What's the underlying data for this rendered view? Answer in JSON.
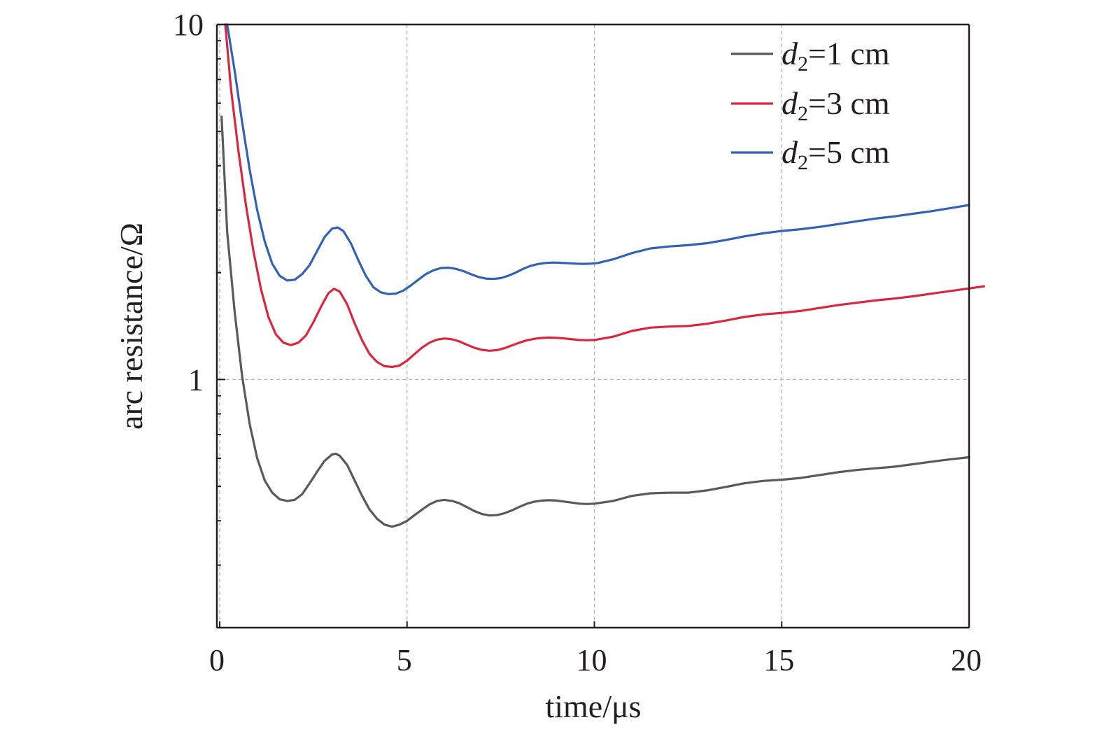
{
  "chart_data": {
    "type": "line",
    "xlabel": "time/μs",
    "ylabel": "arc resistance/Ω",
    "xlim": [
      0,
      20
    ],
    "ylim": [
      0.2,
      10
    ],
    "yscale": "log",
    "x_ticks": [
      0,
      5,
      10,
      15,
      20
    ],
    "x_tick_labels": [
      "0",
      "5",
      "10",
      "15",
      "20"
    ],
    "y_ticks": [
      1,
      10
    ],
    "y_tick_labels": [
      "1",
      "10"
    ],
    "grid": true,
    "legend_position": "top-right",
    "series": [
      {
        "name_var": "d",
        "name_sub": "2",
        "name_rest": "=1 cm",
        "color": "#5a5a5a",
        "points": [
          [
            0.05,
            5.5
          ],
          [
            0.2,
            2.6
          ],
          [
            0.4,
            1.55
          ],
          [
            0.6,
            1.02
          ],
          [
            0.8,
            0.75
          ],
          [
            1.0,
            0.6
          ],
          [
            1.2,
            0.52
          ],
          [
            1.4,
            0.48
          ],
          [
            1.6,
            0.46
          ],
          [
            1.8,
            0.455
          ],
          [
            2.0,
            0.458
          ],
          [
            2.2,
            0.475
          ],
          [
            2.4,
            0.51
          ],
          [
            2.6,
            0.55
          ],
          [
            2.8,
            0.59
          ],
          [
            3.0,
            0.615
          ],
          [
            3.1,
            0.618
          ],
          [
            3.2,
            0.61
          ],
          [
            3.4,
            0.575
          ],
          [
            3.6,
            0.52
          ],
          [
            3.8,
            0.47
          ],
          [
            4.0,
            0.43
          ],
          [
            4.2,
            0.405
          ],
          [
            4.4,
            0.39
          ],
          [
            4.6,
            0.385
          ],
          [
            4.8,
            0.39
          ],
          [
            5.0,
            0.4
          ],
          [
            5.2,
            0.415
          ],
          [
            5.4,
            0.43
          ],
          [
            5.6,
            0.445
          ],
          [
            5.8,
            0.455
          ],
          [
            6.0,
            0.458
          ],
          [
            6.2,
            0.455
          ],
          [
            6.4,
            0.448
          ],
          [
            6.6,
            0.437
          ],
          [
            6.8,
            0.426
          ],
          [
            7.0,
            0.418
          ],
          [
            7.2,
            0.414
          ],
          [
            7.4,
            0.415
          ],
          [
            7.6,
            0.42
          ],
          [
            7.8,
            0.428
          ],
          [
            8.0,
            0.438
          ],
          [
            8.2,
            0.447
          ],
          [
            8.4,
            0.453
          ],
          [
            8.6,
            0.456
          ],
          [
            8.8,
            0.457
          ],
          [
            9.0,
            0.456
          ],
          [
            9.2,
            0.453
          ],
          [
            9.4,
            0.45
          ],
          [
            9.6,
            0.447
          ],
          [
            9.8,
            0.446
          ],
          [
            10.0,
            0.447
          ],
          [
            10.5,
            0.455
          ],
          [
            11.0,
            0.47
          ],
          [
            11.5,
            0.478
          ],
          [
            12.0,
            0.48
          ],
          [
            12.5,
            0.48
          ],
          [
            13.0,
            0.487
          ],
          [
            13.5,
            0.498
          ],
          [
            14.0,
            0.51
          ],
          [
            14.5,
            0.518
          ],
          [
            15.0,
            0.522
          ],
          [
            15.5,
            0.528
          ],
          [
            16.0,
            0.538
          ],
          [
            16.5,
            0.548
          ],
          [
            17.0,
            0.556
          ],
          [
            17.5,
            0.562
          ],
          [
            18.0,
            0.568
          ],
          [
            18.5,
            0.577
          ],
          [
            19.0,
            0.587
          ],
          [
            19.5,
            0.596
          ],
          [
            20.0,
            0.604
          ]
        ]
      },
      {
        "name_var": "d",
        "name_sub": "2",
        "name_rest": "=3 cm",
        "color": "#d9283e",
        "points": [
          [
            0.15,
            10.0
          ],
          [
            0.3,
            6.6
          ],
          [
            0.5,
            4.4
          ],
          [
            0.7,
            3.1
          ],
          [
            0.9,
            2.3
          ],
          [
            1.1,
            1.8
          ],
          [
            1.3,
            1.5
          ],
          [
            1.5,
            1.34
          ],
          [
            1.7,
            1.27
          ],
          [
            1.9,
            1.25
          ],
          [
            2.1,
            1.27
          ],
          [
            2.3,
            1.33
          ],
          [
            2.5,
            1.45
          ],
          [
            2.7,
            1.6
          ],
          [
            2.9,
            1.75
          ],
          [
            3.05,
            1.8
          ],
          [
            3.2,
            1.77
          ],
          [
            3.4,
            1.63
          ],
          [
            3.6,
            1.44
          ],
          [
            3.8,
            1.29
          ],
          [
            4.0,
            1.18
          ],
          [
            4.2,
            1.12
          ],
          [
            4.4,
            1.09
          ],
          [
            4.6,
            1.085
          ],
          [
            4.8,
            1.095
          ],
          [
            5.0,
            1.13
          ],
          [
            5.2,
            1.18
          ],
          [
            5.4,
            1.23
          ],
          [
            5.6,
            1.27
          ],
          [
            5.8,
            1.295
          ],
          [
            6.0,
            1.305
          ],
          [
            6.2,
            1.298
          ],
          [
            6.4,
            1.28
          ],
          [
            6.6,
            1.253
          ],
          [
            6.8,
            1.228
          ],
          [
            7.0,
            1.212
          ],
          [
            7.2,
            1.205
          ],
          [
            7.4,
            1.21
          ],
          [
            7.6,
            1.225
          ],
          [
            7.8,
            1.248
          ],
          [
            8.0,
            1.27
          ],
          [
            8.2,
            1.29
          ],
          [
            8.4,
            1.302
          ],
          [
            8.6,
            1.31
          ],
          [
            8.8,
            1.312
          ],
          [
            9.0,
            1.31
          ],
          [
            9.2,
            1.305
          ],
          [
            9.4,
            1.298
          ],
          [
            9.6,
            1.292
          ],
          [
            9.8,
            1.29
          ],
          [
            10.0,
            1.292
          ],
          [
            10.5,
            1.32
          ],
          [
            11.0,
            1.37
          ],
          [
            11.5,
            1.4
          ],
          [
            12.0,
            1.41
          ],
          [
            12.5,
            1.415
          ],
          [
            13.0,
            1.435
          ],
          [
            13.5,
            1.465
          ],
          [
            14.0,
            1.5
          ],
          [
            14.5,
            1.525
          ],
          [
            15.0,
            1.54
          ],
          [
            15.5,
            1.56
          ],
          [
            16.0,
            1.59
          ],
          [
            16.5,
            1.62
          ],
          [
            17.0,
            1.645
          ],
          [
            17.5,
            1.67
          ],
          [
            18.0,
            1.69
          ],
          [
            18.5,
            1.715
          ],
          [
            19.0,
            1.745
          ],
          [
            19.5,
            1.775
          ],
          [
            20.0,
            1.805
          ],
          [
            20.4,
            1.83
          ]
        ]
      },
      {
        "name_var": "d",
        "name_sub": "2",
        "name_rest": "=5 cm",
        "color": "#3361b3",
        "points": [
          [
            0.2,
            10.0
          ],
          [
            0.4,
            7.4
          ],
          [
            0.6,
            5.3
          ],
          [
            0.8,
            3.9
          ],
          [
            1.0,
            3.0
          ],
          [
            1.2,
            2.45
          ],
          [
            1.4,
            2.12
          ],
          [
            1.6,
            1.96
          ],
          [
            1.8,
            1.9
          ],
          [
            2.0,
            1.91
          ],
          [
            2.2,
            1.98
          ],
          [
            2.4,
            2.1
          ],
          [
            2.6,
            2.3
          ],
          [
            2.8,
            2.52
          ],
          [
            3.0,
            2.66
          ],
          [
            3.15,
            2.68
          ],
          [
            3.3,
            2.62
          ],
          [
            3.5,
            2.42
          ],
          [
            3.7,
            2.17
          ],
          [
            3.9,
            1.96
          ],
          [
            4.1,
            1.82
          ],
          [
            4.3,
            1.76
          ],
          [
            4.5,
            1.74
          ],
          [
            4.7,
            1.745
          ],
          [
            4.9,
            1.78
          ],
          [
            5.1,
            1.84
          ],
          [
            5.3,
            1.91
          ],
          [
            5.5,
            1.98
          ],
          [
            5.7,
            2.03
          ],
          [
            5.9,
            2.06
          ],
          [
            6.1,
            2.065
          ],
          [
            6.3,
            2.05
          ],
          [
            6.5,
            2.02
          ],
          [
            6.7,
            1.98
          ],
          [
            6.9,
            1.945
          ],
          [
            7.1,
            1.925
          ],
          [
            7.3,
            1.92
          ],
          [
            7.5,
            1.93
          ],
          [
            7.7,
            1.96
          ],
          [
            7.9,
            2.0
          ],
          [
            8.1,
            2.05
          ],
          [
            8.3,
            2.09
          ],
          [
            8.5,
            2.115
          ],
          [
            8.7,
            2.13
          ],
          [
            8.9,
            2.135
          ],
          [
            9.1,
            2.132
          ],
          [
            9.3,
            2.126
          ],
          [
            9.5,
            2.12
          ],
          [
            9.7,
            2.117
          ],
          [
            9.9,
            2.12
          ],
          [
            10.1,
            2.13
          ],
          [
            10.5,
            2.18
          ],
          [
            11.0,
            2.27
          ],
          [
            11.5,
            2.34
          ],
          [
            12.0,
            2.37
          ],
          [
            12.5,
            2.39
          ],
          [
            13.0,
            2.42
          ],
          [
            13.5,
            2.47
          ],
          [
            14.0,
            2.53
          ],
          [
            14.5,
            2.58
          ],
          [
            15.0,
            2.62
          ],
          [
            15.5,
            2.65
          ],
          [
            16.0,
            2.69
          ],
          [
            16.5,
            2.74
          ],
          [
            17.0,
            2.79
          ],
          [
            17.5,
            2.84
          ],
          [
            18.0,
            2.88
          ],
          [
            18.5,
            2.93
          ],
          [
            19.0,
            2.98
          ],
          [
            19.5,
            3.04
          ],
          [
            20.0,
            3.1
          ]
        ]
      }
    ]
  }
}
